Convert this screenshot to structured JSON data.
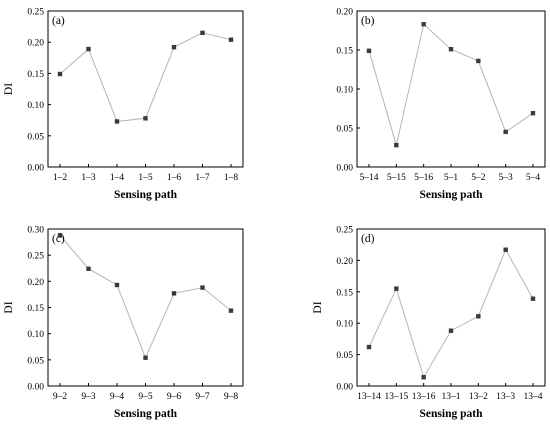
{
  "chart_data": [
    {
      "type": "line",
      "panel_label": "(a)",
      "categories": [
        "1–2",
        "1–3",
        "1–4",
        "1–5",
        "1–6",
        "1–7",
        "1–8"
      ],
      "values": [
        0.149,
        0.189,
        0.073,
        0.078,
        0.192,
        0.215,
        0.204
      ],
      "xlabel": "Sensing path",
      "ylabel": "DI",
      "ylim": [
        0,
        0.25
      ],
      "yticks": [
        "0.00",
        "0.05",
        "0.10",
        "0.15",
        "0.20",
        "0.25"
      ],
      "grid": false,
      "line_color": "#b4b4b4",
      "marker_color": "#3a3a3a"
    },
    {
      "type": "line",
      "panel_label": "(b)",
      "categories": [
        "5–14",
        "5–15",
        "5–16",
        "5–1",
        "5–2",
        "5–3",
        "5–4"
      ],
      "values": [
        0.149,
        0.028,
        0.183,
        0.151,
        0.136,
        0.045,
        0.069
      ],
      "xlabel": "Sensing path",
      "ylabel": "",
      "ylim": [
        0,
        0.2
      ],
      "yticks": [
        "0.00",
        "0.05",
        "0.10",
        "0.15",
        "0.20"
      ],
      "grid": false,
      "line_color": "#b4b4b4",
      "marker_color": "#3a3a3a"
    },
    {
      "type": "line",
      "panel_label": "(c)",
      "categories": [
        "9–2",
        "9–3",
        "9–4",
        "9–5",
        "9–6",
        "9–7",
        "9–8"
      ],
      "values": [
        0.288,
        0.224,
        0.193,
        0.054,
        0.177,
        0.188,
        0.144
      ],
      "xlabel": "Sensing path",
      "ylabel": "DI",
      "ylim": [
        0,
        0.3
      ],
      "yticks": [
        "0.00",
        "0.05",
        "0.10",
        "0.15",
        "0.20",
        "0.25",
        "0.30"
      ],
      "grid": false,
      "line_color": "#b4b4b4",
      "marker_color": "#3a3a3a"
    },
    {
      "type": "line",
      "panel_label": "(d)",
      "categories": [
        "13–14",
        "13–15",
        "13–16",
        "13–1",
        "13–2",
        "13–3",
        "13–4"
      ],
      "values": [
        0.062,
        0.155,
        0.014,
        0.088,
        0.111,
        0.217,
        0.139
      ],
      "xlabel": "Sensing path",
      "ylabel": "DI",
      "ylim": [
        0,
        0.25
      ],
      "yticks": [
        "0.00",
        "0.05",
        "0.10",
        "0.15",
        "0.20",
        "0.25"
      ],
      "grid": false,
      "line_color": "#b4b4b4",
      "marker_color": "#3a3a3a"
    }
  ]
}
